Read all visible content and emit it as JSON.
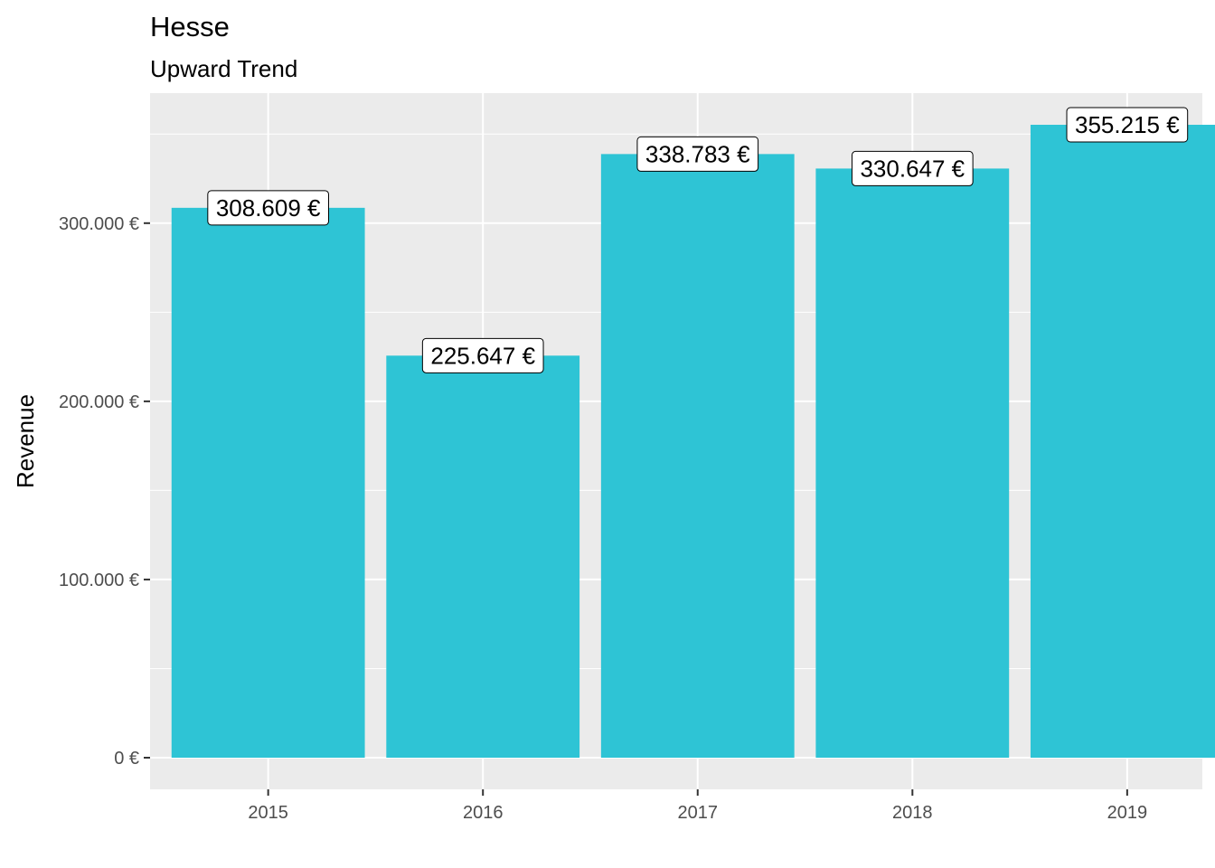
{
  "chart_data": {
    "type": "bar",
    "title": "Hesse",
    "subtitle": "Upward Trend",
    "xlabel": "",
    "ylabel": "Revenue",
    "categories": [
      "2015",
      "2016",
      "2017",
      "2018",
      "2019"
    ],
    "values": [
      308609,
      225647,
      338783,
      330647,
      355215
    ],
    "data_labels": [
      "308.609 €",
      "225.647 €",
      "338.783 €",
      "330.647 €",
      "355.215 €"
    ],
    "y_ticks": [
      0,
      100000,
      200000,
      300000
    ],
    "y_tick_labels": [
      "0 €",
      "100.000 €",
      "200.000 €",
      "300.000 €"
    ],
    "ylim": [
      -17761,
      372976
    ],
    "grid": true,
    "legend": "none",
    "colors": {
      "bar": "#2EC4D5",
      "panel": "#EBEBEB",
      "grid": "#FFFFFF",
      "tick": "#333333",
      "tick_label": "#4D4D4D"
    }
  }
}
